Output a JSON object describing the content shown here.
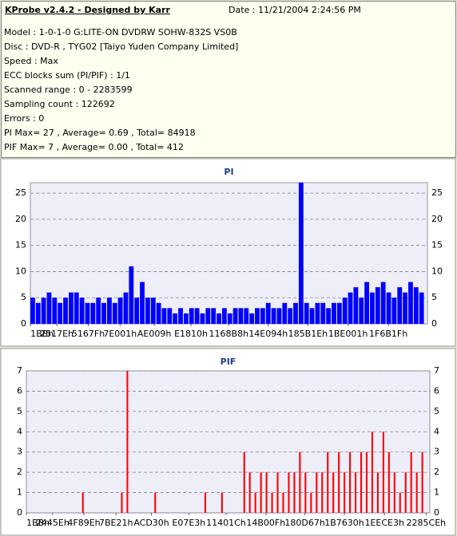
{
  "header": {
    "title": "KProbe v2.4.2 - Designed by Karr",
    "date": "Date : 11/21/2004 2:24:56 PM"
  },
  "info": [
    "Model : 1-0-1-0 G:LITE-ON DVDRW SOHW-832S  VS0B",
    "Disc : DVD-R , TYG02 [Taiyo Yuden Company Limited]",
    "Speed : Max",
    "ECC blocks sum (PI/PIF) : 1/1",
    "Scanned range : 0 - 2283599",
    "Sampling count : 122692",
    "Errors : 0",
    "PI Max= 27 , Average= 0.69 , Total= 84918",
    "PIF Max= 7 , Average= 0.00 , Total= 412"
  ],
  "chart_data": [
    {
      "type": "bar",
      "title": "PI",
      "color": "#0000ff",
      "grid": true,
      "xlim": [
        0,
        2283599
      ],
      "ylim": [
        0,
        27
      ],
      "yticks": [
        0,
        5,
        10,
        15,
        20,
        25
      ],
      "xticks": [
        {
          "value": 443,
          "label": "1BBh"
        },
        {
          "value": 151934,
          "label": "2517Eh"
        },
        {
          "value": 333439,
          "label": "5167Fh"
        },
        {
          "value": 516097,
          "label": "7E001h"
        },
        {
          "value": 712713,
          "label": "AE009h"
        },
        {
          "value": 923664,
          "label": "E1810h"
        },
        {
          "value": 1140920,
          "label": "1168B8h"
        },
        {
          "value": 1368212,
          "label": "14E094h"
        },
        {
          "value": 1596190,
          "label": "185B1Eh"
        },
        {
          "value": 1826817,
          "label": "1BE001h"
        },
        {
          "value": 2059039,
          "label": "1F6B1Fh"
        }
      ],
      "x": [
        0,
        31500,
        63000,
        94500,
        126000,
        157500,
        189000,
        220500,
        252000,
        283500,
        315000,
        346500,
        378000,
        409500,
        441000,
        472500,
        504000,
        535500,
        567000,
        598500,
        630000,
        661500,
        693000,
        724500,
        756000,
        787500,
        819000,
        850500,
        882000,
        913500,
        945000,
        976500,
        1008000,
        1039500,
        1071000,
        1102500,
        1134000,
        1165500,
        1197000,
        1228500,
        1260000,
        1291500,
        1323000,
        1354500,
        1386000,
        1417500,
        1449000,
        1480500,
        1512000,
        1543500,
        1575000,
        1606500,
        1638000,
        1669500,
        1701000,
        1732500,
        1764000,
        1795500,
        1827000,
        1858500,
        1890000,
        1921500,
        1953000,
        1984500,
        2016000,
        2047500,
        2079000,
        2110500,
        2142000,
        2173500,
        2205000,
        2236500
      ],
      "values": [
        5,
        4,
        5,
        6,
        5,
        4,
        5,
        6,
        6,
        5,
        4,
        4,
        5,
        4,
        5,
        4,
        5,
        6,
        11,
        5,
        8,
        5,
        5,
        4,
        3,
        3,
        2,
        3,
        2,
        3,
        3,
        2,
        3,
        3,
        2,
        3,
        2,
        3,
        3,
        3,
        2,
        3,
        3,
        4,
        3,
        3,
        4,
        3,
        4,
        27,
        4,
        3,
        4,
        4,
        3,
        4,
        4,
        5,
        6,
        7,
        5,
        8,
        6,
        7,
        8,
        6,
        5,
        7,
        6,
        8,
        7,
        6
      ]
    },
    {
      "type": "bar",
      "title": "PIF",
      "color": "#ff0000",
      "grid": true,
      "xlim": [
        0,
        2283599
      ],
      "ylim": [
        0,
        7
      ],
      "yticks": [
        0,
        1,
        2,
        3,
        4,
        5,
        6,
        7
      ],
      "xticks": [
        {
          "value": 443,
          "label": "1BBh"
        },
        {
          "value": 148574,
          "label": "2445Eh"
        },
        {
          "value": 325790,
          "label": "4F89Eh"
        },
        {
          "value": 507425,
          "label": "7BE21h"
        },
        {
          "value": 707888,
          "label": "ACD30h"
        },
        {
          "value": 919523,
          "label": "E07E3h"
        },
        {
          "value": 1130524,
          "label": "11401Ch"
        },
        {
          "value": 1355791,
          "label": "14B00Fh"
        },
        {
          "value": 1576295,
          "label": "180D67h"
        },
        {
          "value": 1799728,
          "label": "1B7630h"
        },
        {
          "value": 2026723,
          "label": "1EECE3h"
        },
        {
          "value": 2262478,
          "label": "2285CEh"
        }
      ],
      "x": [
        0,
        31500,
        63000,
        94500,
        126000,
        157500,
        189000,
        220500,
        252000,
        283500,
        315000,
        346500,
        378000,
        409500,
        441000,
        472500,
        504000,
        535500,
        567000,
        598500,
        630000,
        661500,
        693000,
        724500,
        756000,
        787500,
        819000,
        850500,
        882000,
        913500,
        945000,
        976500,
        1008000,
        1039500,
        1071000,
        1102500,
        1134000,
        1165500,
        1197000,
        1228500,
        1260000,
        1291500,
        1323000,
        1354500,
        1386000,
        1417500,
        1449000,
        1480500,
        1512000,
        1543500,
        1575000,
        1606500,
        1638000,
        1669500,
        1701000,
        1732500,
        1764000,
        1795500,
        1827000,
        1858500,
        1890000,
        1921500,
        1953000,
        1984500,
        2016000,
        2047500,
        2079000,
        2110500,
        2142000,
        2173500,
        2205000,
        2236500
      ],
      "values": [
        0,
        0,
        0,
        0,
        0,
        0,
        0,
        0,
        0,
        0,
        1,
        0,
        0,
        0,
        0,
        0,
        0,
        1,
        7,
        0,
        0,
        0,
        0,
        1,
        0,
        0,
        0,
        0,
        0,
        0,
        0,
        0,
        1,
        0,
        0,
        1,
        0,
        0,
        0,
        3,
        2,
        1,
        2,
        2,
        1,
        2,
        1,
        2,
        2,
        3,
        2,
        1,
        2,
        2,
        3,
        2,
        3,
        2,
        3,
        2,
        3,
        3,
        4,
        2,
        4,
        3,
        2,
        1,
        2,
        3,
        2,
        3
      ]
    }
  ]
}
